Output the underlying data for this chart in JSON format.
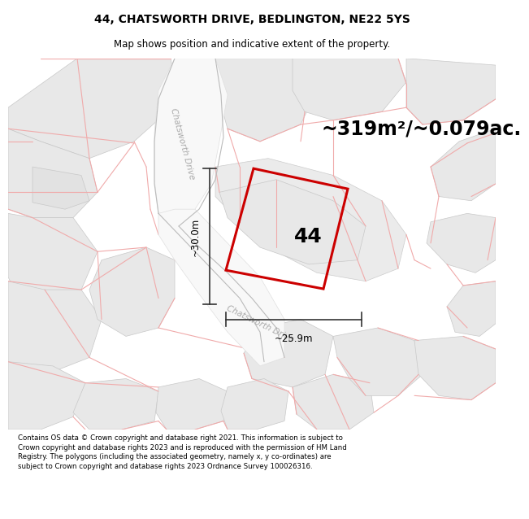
{
  "title": "44, CHATSWORTH DRIVE, BEDLINGTON, NE22 5YS",
  "subtitle": "Map shows position and indicative extent of the property.",
  "area_label": "~319m²/~0.079ac.",
  "plot_number": "44",
  "dim_height": "~30.0m",
  "dim_width": "~25.9m",
  "road_label_top": "Chatsworth Drive",
  "road_label_bot": "Chatsworth Drive",
  "footer": "Contains OS data © Crown copyright and database right 2021. This information is subject to Crown copyright and database rights 2023 and is reproduced with the permission of HM Land Registry. The polygons (including the associated geometry, namely x, y co-ordinates) are subject to Crown copyright and database rights 2023 Ordnance Survey 100026316.",
  "bg_color": "#f2f2f2",
  "plot_fill": "#eeeeee",
  "plot_edge": "#cc0000",
  "road_edge_color": "#d4d4d4",
  "block_fill": "#e8e8e8",
  "block_edge": "#c8c8c8",
  "pink_line": "#f0aaaa",
  "title_fontsize": 10,
  "subtitle_fontsize": 8.5,
  "area_fontsize": 17,
  "plot_label_fontsize": 18,
  "dim_fontsize": 8.5,
  "footer_fontsize": 6.2,
  "road_label_fontsize": 7.5
}
